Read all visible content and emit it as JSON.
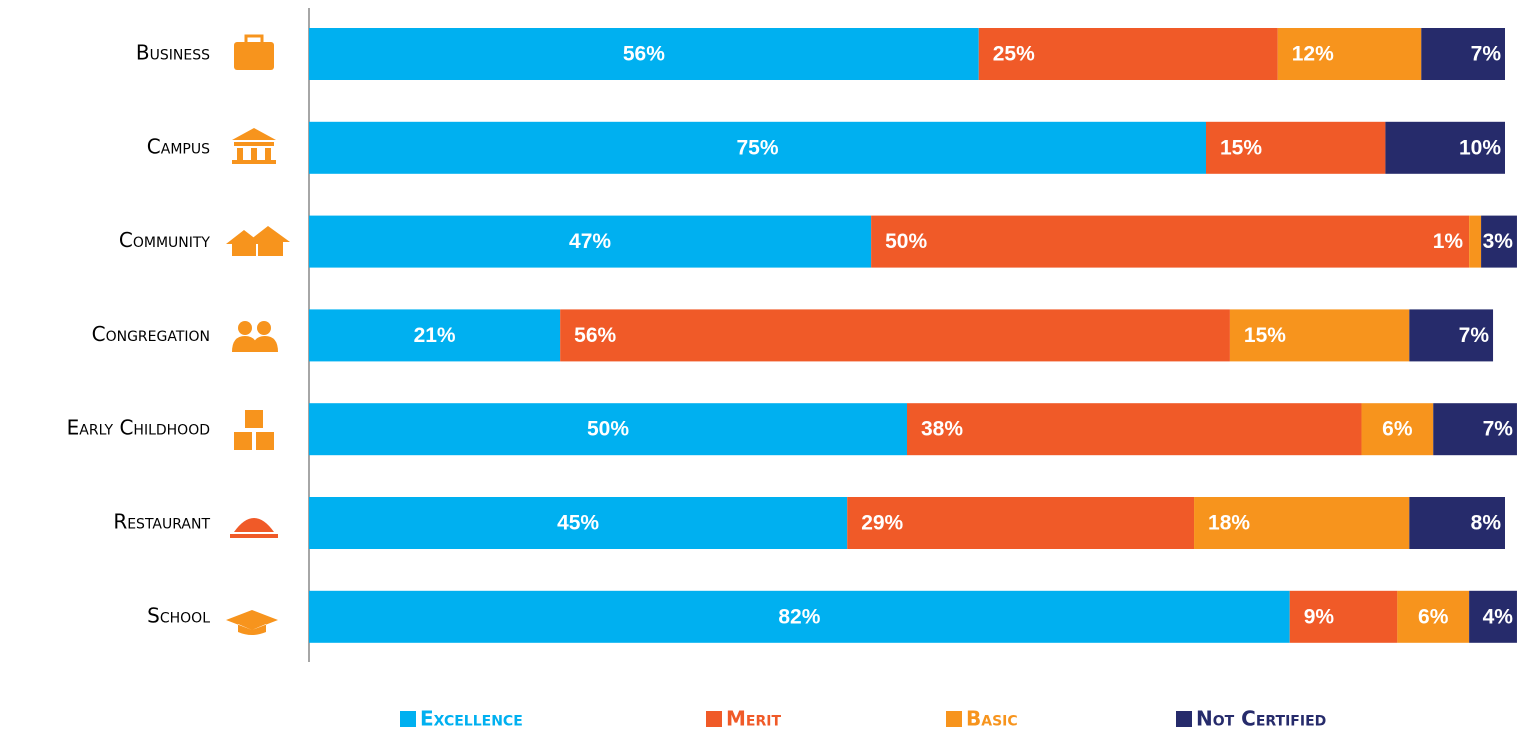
{
  "chart_data": {
    "type": "stacked_barh",
    "categories": [
      "Business",
      "Campus",
      "Community",
      "Congregation",
      "Early Childhood",
      "Restaurant",
      "School"
    ],
    "xlim": [
      0,
      100
    ],
    "series": [
      {
        "name": "Excellence",
        "color": "#00b0f0",
        "values": [
          56,
          75,
          47,
          21,
          50,
          45,
          82
        ],
        "value_labels": [
          "56%",
          "75%",
          "47%",
          "21%",
          "50%",
          "45%",
          "82%"
        ]
      },
      {
        "name": "Merit",
        "color": "#f05a28",
        "values": [
          25,
          15,
          50,
          56,
          38,
          29,
          9
        ],
        "value_labels": [
          "25%",
          "15%",
          "50%",
          "56%",
          "38%",
          "29%",
          "9%"
        ]
      },
      {
        "name": "Basic",
        "color": "#f7941d",
        "values": [
          12,
          0,
          1,
          15,
          6,
          18,
          6
        ],
        "value_labels": [
          "12%",
          null,
          "1%",
          "15%",
          "6%",
          "18%",
          "6%"
        ]
      },
      {
        "name": "Not Certified",
        "color": "#262b6b",
        "values": [
          7,
          10,
          3,
          7,
          7,
          8,
          4
        ],
        "value_labels": [
          "7%",
          "10%",
          "3%",
          "7%",
          "7%",
          "8%",
          "4%"
        ]
      }
    ],
    "legend": "bottom"
  }
}
